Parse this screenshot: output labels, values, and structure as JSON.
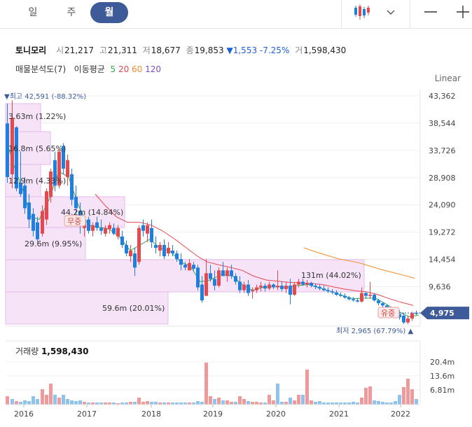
{
  "tabs": [
    {
      "label": "일",
      "active": false
    },
    {
      "label": "주",
      "active": false
    },
    {
      "label": "월",
      "active": true
    }
  ],
  "toolbar": {
    "chart_type_icon": "candlestick-icon",
    "dropdown_icon": "chevron-down-icon",
    "minus_icon": "minus-icon",
    "plus_icon": "plus-icon"
  },
  "stock": {
    "name": "토니모리",
    "open_label": "시",
    "open": "21,217",
    "high_label": "고",
    "high": "21,311",
    "low_label": "저",
    "low": "18,677",
    "close_label": "종",
    "close": "19,853",
    "change": "▼1,553 -7.25%",
    "volume_label": "거",
    "volume": "1,598,430"
  },
  "indicators": {
    "profile_label": "매물분석도(7)",
    "ma_label": "이동평균",
    "ma5": "5",
    "ma20": "20",
    "ma60": "60",
    "ma120": "120"
  },
  "scale_label": "Linear",
  "colors": {
    "up": "#e5484d",
    "down": "#1f7fe0",
    "vol_up": "#ef9a9a",
    "vol_down": "#90c2ee",
    "ma5": "#2ea84a",
    "ma20": "#e5484d",
    "ma60": "#f08c2a",
    "profile": "#f6e3f8",
    "accent": "#3d5a99"
  },
  "price_axis": {
    "ticks": [
      "43,362",
      "38,544",
      "33,726",
      "28,908",
      "24,090",
      "19,272",
      "14,454",
      "9,636"
    ],
    "current": "4,975"
  },
  "annotations": {
    "high": "▼최고 42,591 (-88.32%)",
    "low": "최저 2,965 (67.79%) ▲",
    "peak_zone": "무중",
    "recent_zone": "유중"
  },
  "volume_profile": [
    {
      "label": "3.63m (1.22%)"
    },
    {
      "label": "16.8m (5.65%)"
    },
    {
      "label": "12.9m (4.33%)"
    },
    {
      "label": "44.2m (14.84%)"
    },
    {
      "label": "29.6m (9.95%)"
    },
    {
      "label": "131m (44.02%)"
    },
    {
      "label": "59.6m (20.01%)"
    }
  ],
  "volume_panel": {
    "title": "거래량",
    "value": "1,598,430",
    "ticks": [
      "20.4m",
      "13.6m",
      "6.81m"
    ]
  },
  "x_axis": {
    "years": [
      "2016",
      "2017",
      "2018",
      "2019",
      "2020",
      "2021",
      "2022"
    ]
  }
}
